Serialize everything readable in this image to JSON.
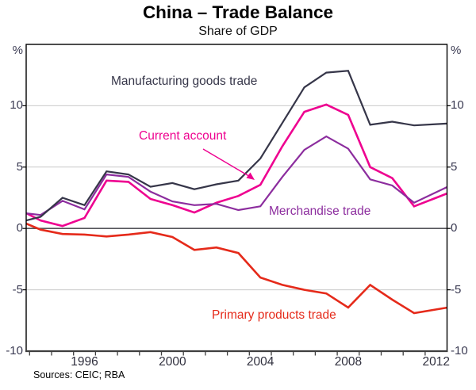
{
  "page": {
    "title": "China – Trade Balance",
    "subtitle": "Share of GDP",
    "sources": "Sources: CEIC; RBA"
  },
  "chart_data": {
    "type": "line",
    "title": "China – Trade Balance",
    "subtitle": "Share of GDP",
    "unit": "%",
    "y_axis": {
      "min": -10,
      "max": 15,
      "tick_labels": [
        "%",
        "10",
        "5",
        "0",
        "-5",
        "-10"
      ],
      "tick_values": [
        10,
        5,
        0,
        -5,
        -10
      ],
      "gridlines": [
        10,
        5,
        -5
      ],
      "zero_line": 0,
      "unit_label": "%"
    },
    "x_axis": {
      "label_years": [
        "1996",
        "2000",
        "2004",
        "2008",
        "2012"
      ],
      "tick_first_year": 1994,
      "tick_last_year": 2012
    },
    "years": [
      1993,
      1994,
      1995,
      1996,
      1997,
      1998,
      1999,
      2000,
      2001,
      2002,
      2003,
      2004,
      2005,
      2006,
      2007,
      2008,
      2009,
      2010,
      2011,
      2012
    ],
    "series": [
      {
        "name": "Manufacturing goods trade",
        "color": "#363649",
        "values": [
          0.5,
          0.95,
          2.5,
          1.9,
          4.65,
          4.4,
          3.4,
          3.7,
          3.2,
          3.6,
          3.9,
          5.7,
          8.6,
          11.5,
          12.7,
          12.85,
          8.45,
          8.7,
          8.4,
          8.5
        ]
      },
      {
        "name": "Current account",
        "color": "#ee0290",
        "values": [
          1.55,
          0.65,
          0.2,
          0.85,
          3.9,
          3.8,
          2.4,
          1.9,
          1.3,
          2.1,
          2.65,
          3.55,
          6.7,
          9.5,
          10.1,
          9.25,
          5.0,
          4.1,
          1.8,
          2.5
        ]
      },
      {
        "name": "Merchandise trade",
        "color": "#8c2d9e",
        "values": [
          1.3,
          1.1,
          2.25,
          1.55,
          4.4,
          4.2,
          3.0,
          2.2,
          1.9,
          2.0,
          1.5,
          1.8,
          4.2,
          6.4,
          7.5,
          6.5,
          4.0,
          3.5,
          2.1,
          2.95
        ]
      },
      {
        "name": "Primary products trade",
        "color": "#e52a1a",
        "values": [
          0.65,
          -0.1,
          -0.45,
          -0.5,
          -0.65,
          -0.5,
          -0.3,
          -0.7,
          -1.75,
          -1.55,
          -2.0,
          -4.0,
          -4.6,
          -5.0,
          -5.3,
          -6.45,
          -4.6,
          -5.8,
          -6.9,
          -6.6
        ]
      }
    ],
    "annotation_arrow": {
      "from_series": "Current account"
    },
    "sources": "Sources: CEIC; RBA"
  }
}
